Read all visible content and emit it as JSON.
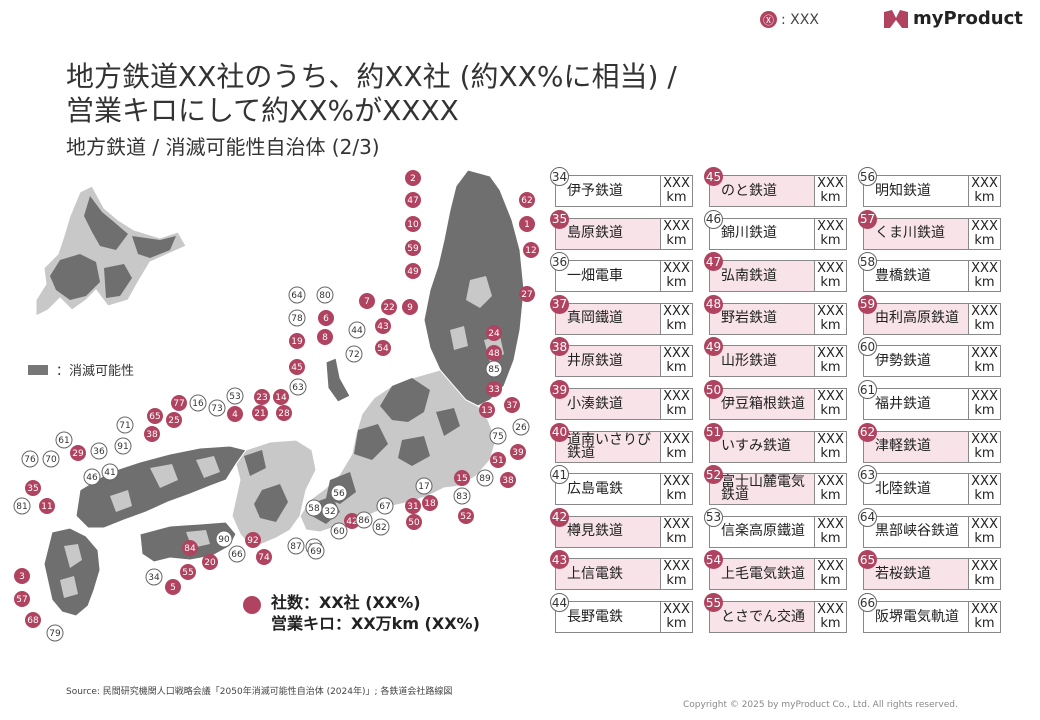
{
  "header": {
    "legend_mark": "Ⓧ",
    "legend_label": ": XXX",
    "brand": "myProduct"
  },
  "title": {
    "line1": "地方鉄道XX社のうち、約XX社 (約XX%に相当) /",
    "line2": "営業キロにして約XX%がXXXX",
    "subtitle": "地方鉄道 / 消滅可能性自治体 (2/3)"
  },
  "map": {
    "legend_label": "：消滅可能性",
    "colors": {
      "vanishing": "#6f6f6f",
      "other": "#c8c8c8",
      "accent": "#b0435f"
    },
    "markers": [
      {
        "n": "40",
        "s": "f"
      },
      {
        "n": "2",
        "s": "f"
      },
      {
        "n": "47",
        "s": "f"
      },
      {
        "n": "62",
        "s": "f"
      },
      {
        "n": "10",
        "s": "f"
      },
      {
        "n": "1",
        "s": "f"
      },
      {
        "n": "59",
        "s": "f"
      },
      {
        "n": "12",
        "s": "f"
      },
      {
        "n": "49",
        "s": "f"
      },
      {
        "n": "27",
        "s": "f"
      },
      {
        "n": "64",
        "s": "o"
      },
      {
        "n": "80",
        "s": "o"
      },
      {
        "n": "7",
        "s": "f"
      },
      {
        "n": "22",
        "s": "f"
      },
      {
        "n": "9",
        "s": "f"
      },
      {
        "n": "78",
        "s": "o"
      },
      {
        "n": "6",
        "s": "f"
      },
      {
        "n": "44",
        "s": "o"
      },
      {
        "n": "43",
        "s": "f"
      },
      {
        "n": "8",
        "s": "f"
      },
      {
        "n": "24",
        "s": "f"
      },
      {
        "n": "19",
        "s": "f"
      },
      {
        "n": "72",
        "s": "o"
      },
      {
        "n": "54",
        "s": "f"
      },
      {
        "n": "48",
        "s": "f"
      },
      {
        "n": "45",
        "s": "f"
      },
      {
        "n": "85",
        "s": "o"
      },
      {
        "n": "63",
        "s": "o"
      },
      {
        "n": "33",
        "s": "f"
      },
      {
        "n": "53",
        "s": "o"
      },
      {
        "n": "23",
        "s": "f"
      },
      {
        "n": "14",
        "s": "f"
      },
      {
        "n": "37",
        "s": "f"
      },
      {
        "n": "77",
        "s": "f"
      },
      {
        "n": "16",
        "s": "o"
      },
      {
        "n": "73",
        "s": "o"
      },
      {
        "n": "4",
        "s": "f"
      },
      {
        "n": "21",
        "s": "f"
      },
      {
        "n": "28",
        "s": "f"
      },
      {
        "n": "13",
        "s": "f"
      },
      {
        "n": "65",
        "s": "f"
      },
      {
        "n": "25",
        "s": "f"
      },
      {
        "n": "26",
        "s": "o"
      },
      {
        "n": "71",
        "s": "o"
      },
      {
        "n": "38",
        "s": "f"
      },
      {
        "n": "75",
        "s": "o"
      },
      {
        "n": "61",
        "s": "o"
      },
      {
        "n": "91",
        "s": "o"
      },
      {
        "n": "39",
        "s": "f"
      },
      {
        "n": "36",
        "s": "o"
      },
      {
        "n": "29",
        "s": "f"
      },
      {
        "n": "76",
        "s": "o"
      },
      {
        "n": "70",
        "s": "o"
      },
      {
        "n": "51",
        "s": "f"
      },
      {
        "n": "46",
        "s": "o"
      },
      {
        "n": "41",
        "s": "o"
      },
      {
        "n": "89",
        "s": "o"
      },
      {
        "n": "15",
        "s": "f"
      },
      {
        "n": "38",
        "s": "f"
      },
      {
        "n": "35",
        "s": "f"
      },
      {
        "n": "17",
        "s": "o"
      },
      {
        "n": "83",
        "s": "o"
      },
      {
        "n": "56",
        "s": "o"
      },
      {
        "n": "81",
        "s": "o"
      },
      {
        "n": "11",
        "s": "f"
      },
      {
        "n": "58",
        "s": "o"
      },
      {
        "n": "32",
        "s": "o"
      },
      {
        "n": "42",
        "s": "f"
      },
      {
        "n": "67",
        "s": "o"
      },
      {
        "n": "31",
        "s": "f"
      },
      {
        "n": "18",
        "s": "f"
      },
      {
        "n": "86",
        "s": "o"
      },
      {
        "n": "52",
        "s": "f"
      },
      {
        "n": "50",
        "s": "f"
      },
      {
        "n": "60",
        "s": "o"
      },
      {
        "n": "30",
        "s": "o"
      },
      {
        "n": "82",
        "s": "o"
      },
      {
        "n": "90",
        "s": "o"
      },
      {
        "n": "92",
        "s": "f"
      },
      {
        "n": "87",
        "s": "o"
      },
      {
        "n": "69",
        "s": "o"
      },
      {
        "n": "84",
        "s": "f"
      },
      {
        "n": "20",
        "s": "f"
      },
      {
        "n": "66",
        "s": "o"
      },
      {
        "n": "74",
        "s": "f"
      },
      {
        "n": "55",
        "s": "f"
      },
      {
        "n": "3",
        "s": "f"
      },
      {
        "n": "34",
        "s": "o"
      },
      {
        "n": "5",
        "s": "f"
      },
      {
        "n": "57",
        "s": "f"
      },
      {
        "n": "68",
        "s": "f"
      },
      {
        "n": "79",
        "s": "o"
      }
    ]
  },
  "summary": {
    "line1": "社数：XX社 (XX%)",
    "line2": "営業キロ：XX万km (XX%)"
  },
  "railways": [
    {
      "num": "34",
      "name": "伊予鉄道",
      "len": "XXX km",
      "f": false
    },
    {
      "num": "35",
      "name": "島原鉄道",
      "len": "XXX km",
      "f": true
    },
    {
      "num": "36",
      "name": "一畑電車",
      "len": "XXX km",
      "f": false
    },
    {
      "num": "37",
      "name": "真岡鐵道",
      "len": "XXX km",
      "f": true
    },
    {
      "num": "38",
      "name": "井原鉄道",
      "len": "XXX km",
      "f": true
    },
    {
      "num": "39",
      "name": "小湊鉄道",
      "len": "XXX km",
      "f": true
    },
    {
      "num": "40",
      "name": "道南いさりび鉄道",
      "len": "XXX km",
      "f": true
    },
    {
      "num": "41",
      "name": "広島電鉄",
      "len": "XXX km",
      "f": false
    },
    {
      "num": "42",
      "name": "樽見鉄道",
      "len": "XXX km",
      "f": true
    },
    {
      "num": "43",
      "name": "上信電鉄",
      "len": "XXX km",
      "f": true
    },
    {
      "num": "44",
      "name": "長野電鉄",
      "len": "XXX km",
      "f": false
    },
    {
      "num": "45",
      "name": "のと鉄道",
      "len": "XXX km",
      "f": true
    },
    {
      "num": "46",
      "name": "錦川鉄道",
      "len": "XXX km",
      "f": false
    },
    {
      "num": "47",
      "name": "弘南鉄道",
      "len": "XXX km",
      "f": true
    },
    {
      "num": "48",
      "name": "野岩鉄道",
      "len": "XXX km",
      "f": true
    },
    {
      "num": "49",
      "name": "山形鉄道",
      "len": "XXX km",
      "f": true
    },
    {
      "num": "50",
      "name": "伊豆箱根鉄道",
      "len": "XXX km",
      "f": true
    },
    {
      "num": "51",
      "name": "いすみ鉄道",
      "len": "XXX km",
      "f": true
    },
    {
      "num": "52",
      "name": "富士山麓電気鉄道",
      "len": "XXX km",
      "f": true
    },
    {
      "num": "53",
      "name": "信楽高原鐵道",
      "len": "XXX km",
      "f": false
    },
    {
      "num": "54",
      "name": "上毛電気鉄道",
      "len": "XXX km",
      "f": true
    },
    {
      "num": "55",
      "name": "とさでん交通",
      "len": "XXX km",
      "f": true
    },
    {
      "num": "56",
      "name": "明知鉄道",
      "len": "XXX km",
      "f": false
    },
    {
      "num": "57",
      "name": "くま川鉄道",
      "len": "XXX km",
      "f": true
    },
    {
      "num": "58",
      "name": "豊橋鉄道",
      "len": "XXX km",
      "f": false
    },
    {
      "num": "59",
      "name": "由利高原鉄道",
      "len": "XXX km",
      "f": true
    },
    {
      "num": "60",
      "name": "伊勢鉄道",
      "len": "XXX km",
      "f": false
    },
    {
      "num": "61",
      "name": "福井鉄道",
      "len": "XXX km",
      "f": false
    },
    {
      "num": "62",
      "name": "津軽鉄道",
      "len": "XXX km",
      "f": true
    },
    {
      "num": "63",
      "name": "北陸鉄道",
      "len": "XXX km",
      "f": false
    },
    {
      "num": "64",
      "name": "黒部峡谷鉄道",
      "len": "XXX km",
      "f": false
    },
    {
      "num": "65",
      "name": "若桜鉄道",
      "len": "XXX km",
      "f": true
    },
    {
      "num": "66",
      "name": "阪堺電気軌道",
      "len": "XXX km",
      "f": false
    }
  ],
  "footer": {
    "source": "Source: 民間研究機関人口戦略会議「2050年消滅可能性自治体 (2024年)」; 各鉄道会社路線図",
    "copyright": "Copyright © 2025 by myProduct Co., Ltd.  All rights reserved."
  }
}
